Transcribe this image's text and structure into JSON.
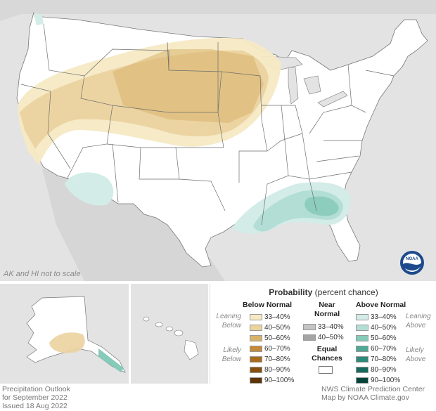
{
  "legend": {
    "title_bold": "Probability",
    "title_rest": "(percent chance)",
    "below_header": "Below Normal",
    "near_header_1": "Near",
    "near_header_2": "Normal",
    "above_header": "Above Normal",
    "leaning_below_1": "Leaning",
    "leaning_below_2": "Below",
    "likely_below_1": "Likely",
    "likely_below_2": "Below",
    "leaning_above_1": "Leaning",
    "leaning_above_2": "Above",
    "likely_above_1": "Likely",
    "likely_above_2": "Above",
    "equal_1": "Equal",
    "equal_2": "Chances",
    "below_items": [
      {
        "label": "33–40%",
        "color": "#f6e9c4"
      },
      {
        "label": "40–50%",
        "color": "#ebd3a0"
      },
      {
        "label": "50–60%",
        "color": "#d8b26c"
      },
      {
        "label": "60–70%",
        "color": "#c48a3a"
      },
      {
        "label": "70–80%",
        "color": "#a86a1c"
      },
      {
        "label": "80–90%",
        "color": "#845010"
      },
      {
        "label": "90–100%",
        "color": "#5c3406"
      }
    ],
    "near_items": [
      {
        "label": "33–40%",
        "color": "#c4c4c4"
      },
      {
        "label": "40–50%",
        "color": "#a4a4a4"
      }
    ],
    "above_items": [
      {
        "label": "33–40%",
        "color": "#d3ece8"
      },
      {
        "label": "40–50%",
        "color": "#b2ded5"
      },
      {
        "label": "50–60%",
        "color": "#86cab9"
      },
      {
        "label": "60–70%",
        "color": "#4fa795"
      },
      {
        "label": "70–80%",
        "color": "#2d8a79"
      },
      {
        "label": "80–90%",
        "color": "#16695b"
      },
      {
        "label": "90–100%",
        "color": "#064439"
      }
    ]
  },
  "map": {
    "scale_note": "AK and HI not to scale",
    "land_color": "#ffffff",
    "background_color": "#e3e3e3",
    "noaa_logo_text": "NOAA"
  },
  "footer": {
    "left_1": "Precipitation Outlook",
    "left_2": "for September 2022",
    "left_3": "Issued 18 Aug 2022",
    "right_1": "NWS Climate Prediction Center",
    "right_2": "Map by NOAA Climate.gov"
  }
}
